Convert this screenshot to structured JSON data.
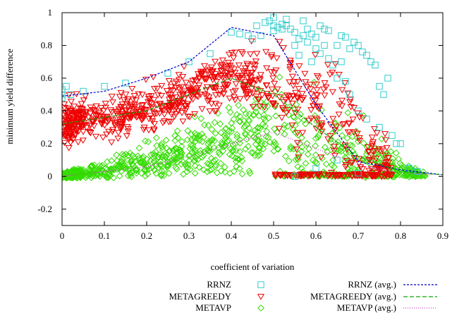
{
  "chart_data": {
    "type": "scatter",
    "xlabel": "coefficient of variation",
    "ylabel": "minimum yield difference",
    "xlim": [
      0,
      0.9
    ],
    "ylim": [
      -0.3,
      1
    ],
    "x_ticks": [
      0,
      0.1,
      0.2,
      0.3,
      0.4,
      0.5,
      0.6,
      0.7,
      0.8,
      0.9
    ],
    "x_tick_labels": [
      "0",
      "0.1",
      "0.2",
      "0.3",
      "0.4",
      "0.5",
      "0.6",
      "0.7",
      "0.8",
      "0.9"
    ],
    "y_ticks": [
      -0.2,
      0,
      0.2,
      0.4,
      0.6,
      0.8,
      1
    ],
    "y_tick_labels": [
      "-0.2",
      "0",
      "0.2",
      "0.4",
      "0.6",
      "0.8",
      "1"
    ],
    "grid": false,
    "legend_placement": "bottom",
    "scatter_series": [
      {
        "name": "RRNZ",
        "marker": "square",
        "color": "#33cccc",
        "points": [
          [
            0,
            0.5
          ],
          [
            0,
            0.53
          ],
          [
            0,
            0.48
          ],
          [
            0.01,
            0.55
          ],
          [
            0.02,
            0.5
          ],
          [
            0.05,
            0.52
          ],
          [
            0.1,
            0.55
          ],
          [
            0.15,
            0.57
          ],
          [
            0.25,
            0.63
          ],
          [
            0.3,
            0.7
          ],
          [
            0.35,
            0.75
          ],
          [
            0.4,
            0.88
          ],
          [
            0.42,
            0.87
          ],
          [
            0.44,
            0.86
          ],
          [
            0.46,
            0.92
          ],
          [
            0.47,
            0.86
          ],
          [
            0.48,
            0.94
          ],
          [
            0.49,
            0.95
          ],
          [
            0.5,
            0.92
          ],
          [
            0.5,
            0.97
          ],
          [
            0.5,
            0.89
          ],
          [
            0.51,
            0.91
          ],
          [
            0.52,
            0.9
          ],
          [
            0.52,
            0.93
          ],
          [
            0.53,
            0.92
          ],
          [
            0.54,
            0.9
          ],
          [
            0.55,
            0.88
          ],
          [
            0.55,
            0.8
          ],
          [
            0.56,
            0.84
          ],
          [
            0.57,
            0.86
          ],
          [
            0.58,
            0.82
          ],
          [
            0.58,
            0.9
          ],
          [
            0.59,
            0.87
          ],
          [
            0.6,
            0.85
          ],
          [
            0.6,
            0.78
          ],
          [
            0.61,
            0.75
          ],
          [
            0.62,
            0.8
          ],
          [
            0.62,
            0.9
          ],
          [
            0.63,
            0.89
          ],
          [
            0.63,
            0.72
          ],
          [
            0.64,
            0.68
          ],
          [
            0.65,
            0.8
          ],
          [
            0.65,
            0.6
          ],
          [
            0.66,
            0.7
          ],
          [
            0.67,
            0.58
          ],
          [
            0.67,
            0.85
          ],
          [
            0.68,
            0.78
          ],
          [
            0.68,
            0.5
          ],
          [
            0.69,
            0.82
          ],
          [
            0.7,
            0.8
          ],
          [
            0.7,
            0.4
          ],
          [
            0.71,
            0.76
          ],
          [
            0.72,
            0.74
          ],
          [
            0.72,
            0.35
          ],
          [
            0.73,
            0.7
          ],
          [
            0.74,
            0.68
          ],
          [
            0.75,
            0.3
          ],
          [
            0.75,
            0.55
          ],
          [
            0.77,
            0.6
          ],
          [
            0.78,
            0.25
          ],
          [
            0.79,
            0.2
          ],
          [
            0.8,
            0.2
          ],
          [
            0.82,
            0.05
          ],
          [
            0.84,
            0.03
          ],
          [
            0.55,
            0.0
          ],
          [
            0.6,
            0.05
          ],
          [
            0.65,
            0.1
          ],
          [
            0.7,
            0.02
          ],
          [
            0.76,
            0.5
          ],
          [
            0.66,
            0.86
          ],
          [
            0.57,
            0.95
          ],
          [
            0.53,
            0.96
          ],
          [
            0.61,
            0.92
          ],
          [
            0.45,
            0.84
          ],
          [
            0.56,
            0.74
          ],
          [
            0.59,
            0.7
          ]
        ]
      }
    ],
    "cloud_series": [
      {
        "name": "METAGREEDY",
        "marker": "triangle-down",
        "color": "#ee0000",
        "count": 900,
        "x_range": [
          0,
          0.78
        ],
        "center": [
          [
            0,
            0.32
          ],
          [
            0.1,
            0.36
          ],
          [
            0.2,
            0.4
          ],
          [
            0.3,
            0.5
          ],
          [
            0.4,
            0.6
          ],
          [
            0.5,
            0.56
          ],
          [
            0.6,
            0.45
          ],
          [
            0.7,
            0.2
          ],
          [
            0.78,
            0.04
          ]
        ],
        "spread": [
          [
            0,
            0.06
          ],
          [
            0.1,
            0.06
          ],
          [
            0.2,
            0.07
          ],
          [
            0.3,
            0.07
          ],
          [
            0.4,
            0.08
          ],
          [
            0.5,
            0.1
          ],
          [
            0.6,
            0.2
          ],
          [
            0.7,
            0.15
          ],
          [
            0.78,
            0.05
          ]
        ]
      },
      {
        "name": "METAVP",
        "marker": "diamond",
        "color": "#33dd00",
        "count": 900,
        "x_range": [
          0,
          0.86
        ],
        "center": [
          [
            0,
            0.0
          ],
          [
            0.1,
            0.04
          ],
          [
            0.2,
            0.08
          ],
          [
            0.3,
            0.15
          ],
          [
            0.4,
            0.22
          ],
          [
            0.5,
            0.3
          ],
          [
            0.6,
            0.2
          ],
          [
            0.7,
            0.12
          ],
          [
            0.8,
            0.03
          ],
          [
            0.86,
            0.01
          ]
        ],
        "spread": [
          [
            0,
            0.01
          ],
          [
            0.1,
            0.03
          ],
          [
            0.2,
            0.05
          ],
          [
            0.3,
            0.07
          ],
          [
            0.4,
            0.1
          ],
          [
            0.5,
            0.13
          ],
          [
            0.6,
            0.16
          ],
          [
            0.7,
            0.12
          ],
          [
            0.8,
            0.04
          ],
          [
            0.86,
            0.01
          ]
        ]
      }
    ],
    "line_series": [
      {
        "name": "RRNZ (avg.)",
        "color": "#0000cc",
        "dash": "3,2",
        "points": [
          [
            0,
            0.49
          ],
          [
            0.1,
            0.52
          ],
          [
            0.2,
            0.6
          ],
          [
            0.3,
            0.7
          ],
          [
            0.4,
            0.91
          ],
          [
            0.5,
            0.86
          ],
          [
            0.6,
            0.44
          ],
          [
            0.7,
            0.09
          ],
          [
            0.8,
            0.04
          ],
          [
            0.9,
            0.01
          ]
        ]
      },
      {
        "name": "METAGREEDY (avg.)",
        "color": "#00aa00",
        "dash": "6,3",
        "points": [
          [
            0,
            0.32
          ],
          [
            0.1,
            0.36
          ],
          [
            0.2,
            0.4
          ],
          [
            0.3,
            0.5
          ],
          [
            0.4,
            0.6
          ],
          [
            0.5,
            0.5
          ],
          [
            0.6,
            0.3
          ],
          [
            0.7,
            0.12
          ],
          [
            0.8,
            0.03
          ],
          [
            0.9,
            0.01
          ]
        ]
      },
      {
        "name": "METAVP (avg.)",
        "color": "#cc44cc",
        "dash": "1,2",
        "points": [
          [
            0,
            0.0
          ],
          [
            0.1,
            0.03
          ],
          [
            0.2,
            0.06
          ],
          [
            0.3,
            0.12
          ],
          [
            0.4,
            0.2
          ],
          [
            0.5,
            0.27
          ],
          [
            0.6,
            0.17
          ],
          [
            0.7,
            0.07
          ],
          [
            0.8,
            0.02
          ],
          [
            0.9,
            0.01
          ]
        ]
      }
    ],
    "legend": [
      {
        "label": "RRNZ",
        "marker": "square",
        "color": "#33cccc"
      },
      {
        "label": "METAGREEDY",
        "marker": "triangle-down",
        "color": "#ee0000"
      },
      {
        "label": "METAVP",
        "marker": "diamond",
        "color": "#33dd00"
      },
      {
        "label": "RRNZ (avg.)",
        "line": true,
        "color": "#0000cc",
        "dash": "3,2"
      },
      {
        "label": "METAGREEDY (avg.)",
        "line": true,
        "color": "#00aa00",
        "dash": "6,3"
      },
      {
        "label": "METAVP (avg.)",
        "line": true,
        "color": "#cc44cc",
        "dash": "1,2"
      }
    ]
  }
}
